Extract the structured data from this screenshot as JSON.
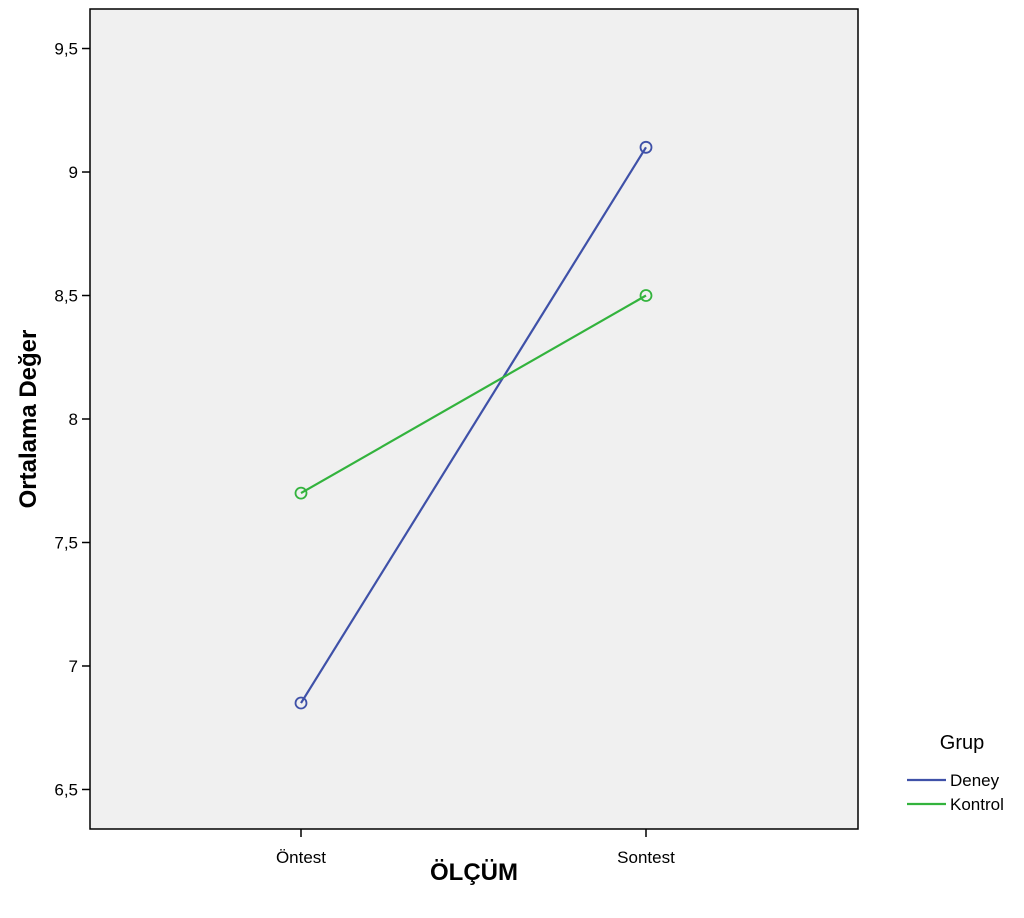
{
  "chart_data": {
    "type": "line",
    "title": "",
    "xlabel": "ÖLÇÜM",
    "ylabel": "Ortalama Değer",
    "categories": [
      "Öntest",
      "Sontest"
    ],
    "series": [
      {
        "name": "Deney",
        "values": [
          6.85,
          9.1
        ],
        "color": "#3f51a8"
      },
      {
        "name": "Kontrol",
        "values": [
          7.7,
          8.5
        ],
        "color": "#33b33d"
      }
    ],
    "ylim": [
      6.34,
      9.66
    ],
    "yticks": [
      "6,5",
      "7",
      "7,5",
      "8",
      "8,5",
      "9",
      "9,5"
    ],
    "ytick_values": [
      6.5,
      7,
      7.5,
      8,
      8.5,
      9,
      9.5
    ],
    "grid": false,
    "markers": "open-circle",
    "plot_background": "#f0f0f0",
    "legend": {
      "title": "Grup",
      "position": "right"
    }
  }
}
